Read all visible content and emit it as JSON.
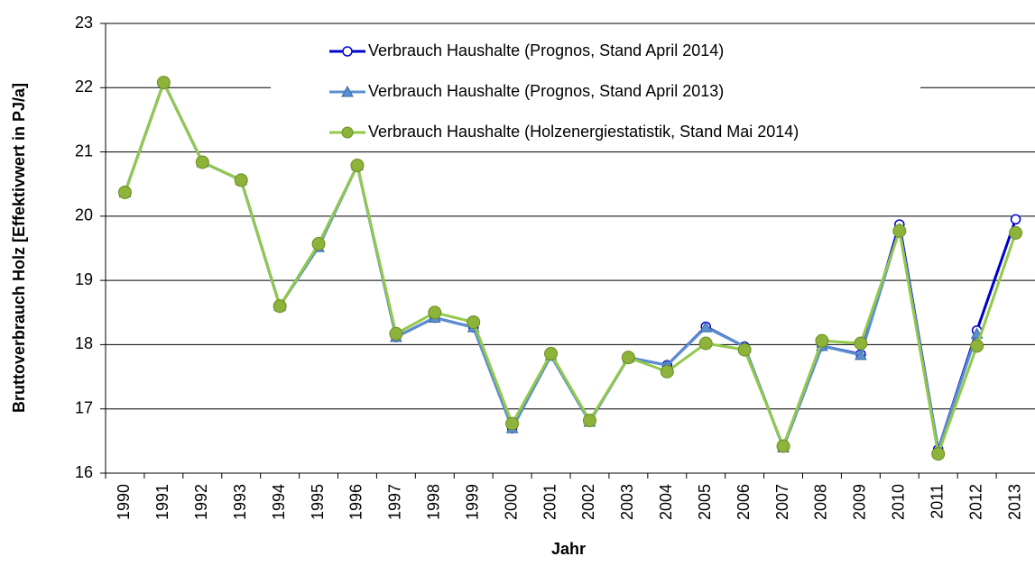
{
  "chart_data": {
    "type": "line",
    "xlabel": "Jahr",
    "ylabel": "Bruttoverbrauch Holz [Effektivwert in PJ/a]",
    "categories": [
      "1990",
      "1991",
      "1992",
      "1993",
      "1994",
      "1995",
      "1996",
      "1997",
      "1998",
      "1999",
      "2000",
      "2001",
      "2002",
      "2003",
      "2004",
      "2005",
      "2006",
      "2007",
      "2008",
      "2009",
      "2010",
      "2011",
      "2012",
      "2013"
    ],
    "series": [
      {
        "name": "Verbrauch Haushalte (Prognos, Stand April 2014)",
        "color": "#0000cc",
        "marker": "open-circle",
        "values": [
          20.37,
          22.08,
          20.84,
          20.56,
          18.6,
          19.55,
          20.79,
          18.12,
          18.42,
          18.27,
          16.7,
          17.83,
          16.8,
          17.8,
          17.68,
          18.28,
          17.97,
          16.4,
          17.98,
          17.85,
          19.87,
          16.37,
          18.22,
          19.95
        ]
      },
      {
        "name": "Verbrauch Haushalte (Prognos, Stand April 2013)",
        "color": "#5b8fd0",
        "marker": "triangle",
        "values": [
          20.37,
          22.08,
          20.84,
          20.56,
          18.6,
          19.52,
          20.79,
          18.12,
          18.42,
          18.27,
          16.7,
          17.83,
          16.8,
          17.8,
          17.68,
          18.27,
          17.97,
          16.4,
          17.98,
          17.84,
          19.8,
          16.37,
          18.17,
          null
        ]
      },
      {
        "name": "Verbrauch Haushalte (Holzenergiestatistik, Stand Mai 2014)",
        "color": "#92c94a",
        "marker": "circle",
        "values": [
          20.37,
          22.08,
          20.84,
          20.56,
          18.6,
          19.57,
          20.79,
          18.17,
          18.5,
          18.35,
          16.77,
          17.86,
          16.82,
          17.8,
          17.58,
          18.02,
          17.92,
          16.42,
          18.06,
          18.02,
          19.77,
          16.3,
          17.98,
          19.74
        ]
      }
    ],
    "ylim": [
      16,
      23
    ],
    "yticks": [
      16,
      17,
      18,
      19,
      20,
      21,
      22,
      23
    ],
    "grid": true
  }
}
